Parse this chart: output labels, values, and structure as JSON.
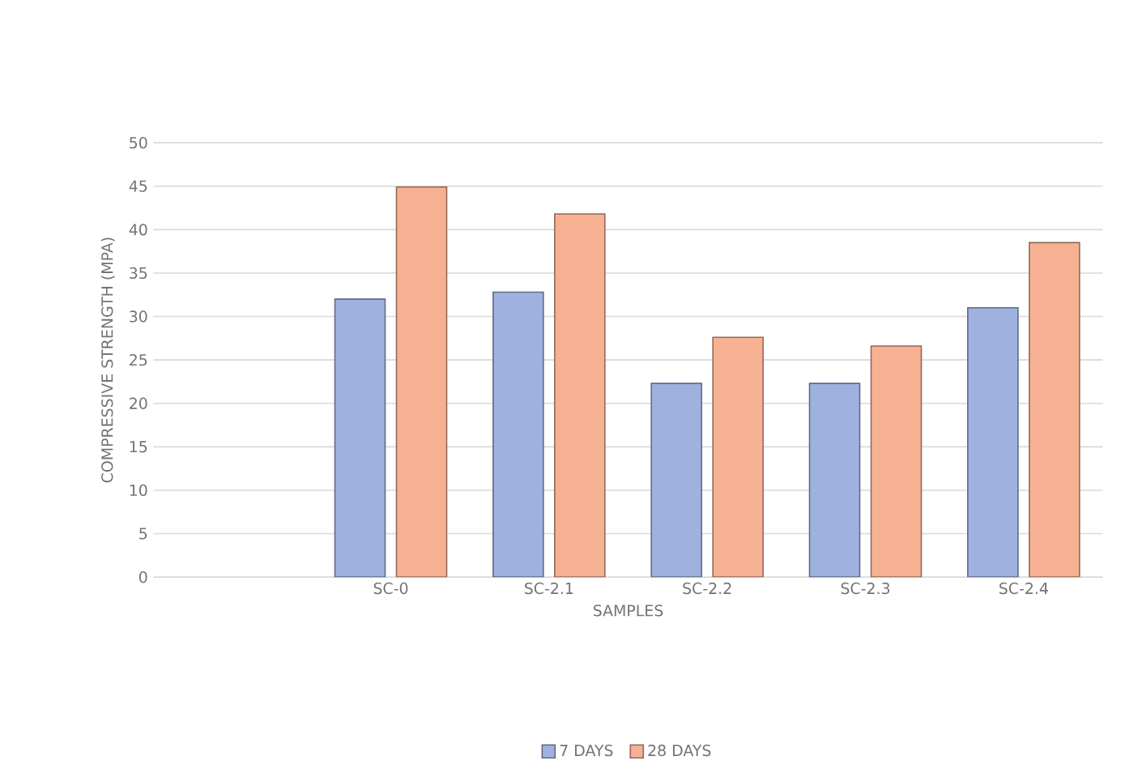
{
  "chart_data": {
    "type": "bar",
    "xlabel": "SAMPLES",
    "ylabel": "COMPRESSIVE STRENGTH (MPA)",
    "categories": [
      null,
      "SC-0",
      "SC-2.1",
      "SC-2.2",
      "SC-2.3",
      "SC-2.4"
    ],
    "series": [
      {
        "name": "7 DAYS",
        "color": "#9fb2df",
        "values": [
          null,
          32.0,
          32.8,
          22.3,
          22.3,
          31.0
        ]
      },
      {
        "name": "28 DAYS",
        "color": "#f5b191",
        "values": [
          null,
          44.9,
          41.8,
          27.6,
          26.6,
          38.5
        ]
      }
    ],
    "ylim": [
      0,
      50
    ],
    "yticks": [
      0,
      5,
      10,
      15,
      20,
      25,
      30,
      35,
      40,
      45,
      50
    ],
    "grid": "y",
    "legend": "bottom"
  }
}
